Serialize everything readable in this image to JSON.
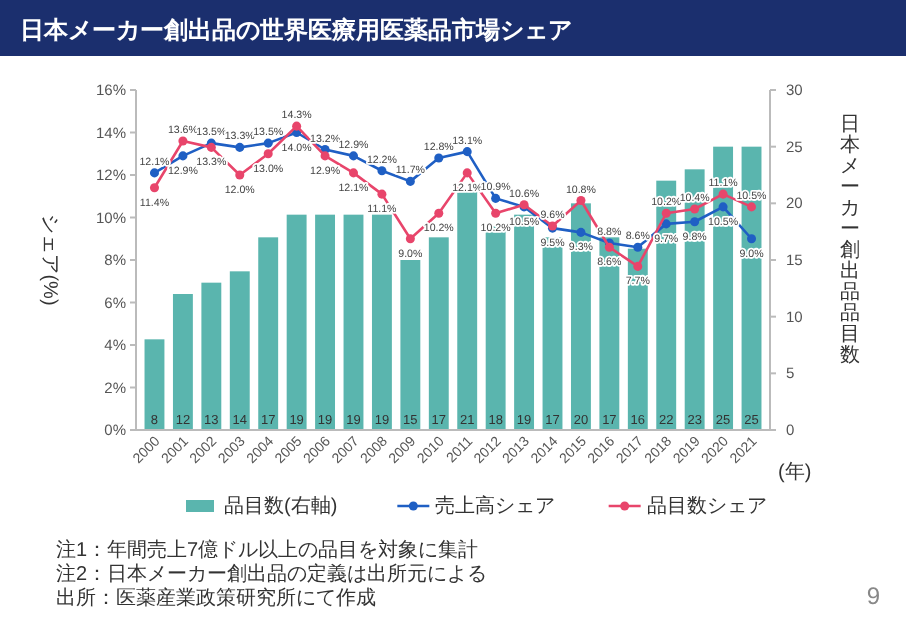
{
  "chart_data": {
    "type": "bar",
    "title": "日本メーカー創出品の世界医療用医薬品市場シェア",
    "xlabel": "(年)",
    "ylabel": "シェア(%)",
    "y2label": "日本メーカー創出品品目数",
    "categories": [
      "2000",
      "2001",
      "2002",
      "2003",
      "2004",
      "2005",
      "2006",
      "2007",
      "2008",
      "2009",
      "2010",
      "2011",
      "2012",
      "2013",
      "2014",
      "2015",
      "2016",
      "2017",
      "2018",
      "2019",
      "2020",
      "2021"
    ],
    "series": [
      {
        "name": "品目数(右軸)",
        "axis": "y2",
        "color": "#5ab5ae",
        "values": [
          8,
          12,
          13,
          14,
          17,
          19,
          19,
          19,
          19,
          15,
          17,
          21,
          18,
          19,
          17,
          20,
          17,
          16,
          22,
          23,
          25,
          25
        ],
        "value_labels": [
          "8",
          "12",
          "13",
          "14",
          "17",
          "19",
          "19",
          "19",
          "19",
          "15",
          "17",
          "21",
          "18",
          "19",
          "17",
          "20",
          "17",
          "16",
          "22",
          "23",
          "25",
          "25"
        ]
      },
      {
        "name": "売上高シェア",
        "type": "line",
        "color": "#1f5fc4",
        "marker": "circle",
        "values": [
          12.1,
          12.9,
          13.5,
          13.3,
          13.5,
          14.0,
          13.2,
          12.9,
          12.2,
          11.7,
          12.8,
          13.1,
          10.9,
          10.5,
          9.5,
          9.3,
          8.8,
          8.6,
          9.7,
          9.8,
          10.5,
          9.0
        ],
        "value_labels": [
          "12.1%",
          "12.9%",
          "13.5%",
          "13.3%",
          "13.5%",
          "14.0%",
          "13.2%",
          "12.9%",
          "12.2%",
          "11.7%",
          "12.8%",
          "13.1%",
          "10.9%",
          "10.5%",
          "9.5%",
          "9.3%",
          "8.8%",
          "8.6%",
          "9.7%",
          "9.8%",
          "10.5%",
          "9.0%"
        ]
      },
      {
        "name": "品目数シェア",
        "type": "line",
        "color": "#e8456b",
        "marker": "circle",
        "values": [
          11.4,
          13.6,
          13.3,
          12.0,
          13.0,
          14.3,
          12.9,
          12.1,
          11.1,
          9.0,
          10.2,
          12.1,
          10.2,
          10.6,
          9.6,
          10.8,
          8.6,
          7.7,
          10.2,
          10.4,
          11.1,
          10.5
        ],
        "value_labels": [
          "11.4%",
          "13.6%",
          "13.3%",
          "12.0%",
          "13.0%",
          "14.3%",
          "12.9%",
          "12.1%",
          "11.1%",
          "9.0%",
          "10.2%",
          "12.1%",
          "10.2%",
          "10.6%",
          "9.6%",
          "10.8%",
          "8.6%",
          "7.7%",
          "10.2%",
          "10.4%",
          "11.1%",
          "10.5%"
        ]
      }
    ],
    "ylim": [
      0,
      16
    ],
    "yticks": [
      {
        "value": 0,
        "label": "0%"
      },
      {
        "value": 2,
        "label": "2%"
      },
      {
        "value": 4,
        "label": "4%"
      },
      {
        "value": 6,
        "label": "6%"
      },
      {
        "value": 8,
        "label": "8%"
      },
      {
        "value": 10,
        "label": "10%"
      },
      {
        "value": 12,
        "label": "12%"
      },
      {
        "value": 14,
        "label": "14%"
      },
      {
        "value": 16,
        "label": "16%"
      }
    ],
    "y2lim": [
      0,
      30
    ],
    "y2ticks": [
      0,
      5,
      10,
      15,
      20,
      25,
      30
    ],
    "legend": "bottom",
    "annotations": [
      "注1：年間売上7億ドル以上の品目を対象に集計",
      "注2：日本メーカー創出品の定義は出所元による",
      "出所：医薬産業政策研究所にて作成",
      "9"
    ]
  }
}
